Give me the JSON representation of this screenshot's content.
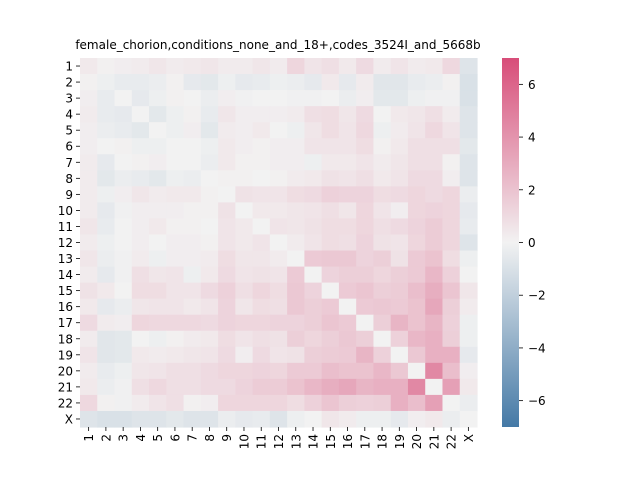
{
  "chart_data": {
    "type": "heatmap",
    "title": "female_chorion,conditions_none_and_18+,codes_3524I_and_5668b",
    "xlabel": "",
    "ylabel": "",
    "categories": [
      "1",
      "2",
      "3",
      "4",
      "5",
      "6",
      "7",
      "8",
      "9",
      "10",
      "11",
      "12",
      "13",
      "14",
      "15",
      "16",
      "17",
      "18",
      "19",
      "20",
      "21",
      "22",
      "X"
    ],
    "colorbar": {
      "min": -7,
      "max": 7,
      "ticks": [
        -6,
        -4,
        -2,
        0,
        2,
        4,
        6
      ],
      "low_color": "#4479a6",
      "mid_color": "#f2f2f2",
      "high_color": "#d84d79"
    },
    "values": [
      [
        0.4,
        0.1,
        0.2,
        0.3,
        0.5,
        0.3,
        0.4,
        0.5,
        0.3,
        0.3,
        0.5,
        0.3,
        1.2,
        0.6,
        0.8,
        0.4,
        1.0,
        0.3,
        0.6,
        0.3,
        0.4,
        1.1,
        -0.8
      ],
      [
        0.1,
        -0.2,
        -0.4,
        -0.4,
        -0.3,
        0.1,
        -0.5,
        -0.6,
        -0.2,
        -0.5,
        -0.4,
        -0.2,
        -0.3,
        -0.5,
        0.4,
        -0.5,
        0.3,
        -0.7,
        -0.7,
        -0.4,
        -0.3,
        0.1,
        -1.0
      ],
      [
        0.2,
        -0.4,
        0.0,
        -0.5,
        -0.2,
        0.1,
        0.0,
        -0.3,
        0.2,
        -0.1,
        0.0,
        0.0,
        -0.1,
        -0.1,
        0.0,
        -0.3,
        0.2,
        -0.6,
        -0.6,
        -0.2,
        -0.1,
        -0.1,
        -1.0
      ],
      [
        0.3,
        -0.4,
        -0.5,
        0.0,
        -0.6,
        -0.2,
        0.1,
        -0.4,
        0.5,
        0.2,
        0.2,
        0.2,
        0.3,
        0.8,
        0.9,
        0.5,
        1.0,
        0.0,
        0.4,
        0.5,
        0.8,
        0.3,
        -0.8
      ],
      [
        0.2,
        -0.3,
        -0.4,
        -0.6,
        0.0,
        -0.2,
        0.2,
        -0.6,
        0.3,
        0.2,
        0.4,
        0.0,
        -0.2,
        0.5,
        0.9,
        0.6,
        1.1,
        -0.2,
        0.3,
        0.6,
        1.1,
        0.6,
        -0.8
      ],
      [
        0.2,
        0.0,
        0.1,
        -0.2,
        -0.2,
        0.0,
        0.0,
        -0.2,
        0.4,
        0.2,
        0.1,
        0.2,
        0.2,
        0.6,
        0.6,
        0.6,
        0.9,
        0.1,
        0.4,
        0.8,
        0.8,
        0.8,
        -0.6
      ],
      [
        0.3,
        -0.5,
        0.0,
        0.1,
        0.2,
        0.0,
        0.0,
        -0.3,
        0.4,
        0.1,
        0.1,
        0.2,
        0.2,
        -0.2,
        0.4,
        0.4,
        0.6,
        0.3,
        0.5,
        0.8,
        0.8,
        0.1,
        -0.8
      ],
      [
        0.3,
        -0.6,
        -0.3,
        -0.4,
        -0.6,
        -0.2,
        -0.3,
        0.0,
        0.1,
        0.1,
        0.0,
        0.1,
        0.3,
        0.4,
        0.7,
        0.6,
        0.8,
        0.4,
        0.6,
        1.0,
        1.0,
        0.2,
        -0.8
      ],
      [
        0.3,
        -0.2,
        0.2,
        0.5,
        0.3,
        0.4,
        0.4,
        0.1,
        0.0,
        0.7,
        0.6,
        0.6,
        0.9,
        1.0,
        1.4,
        1.3,
        1.3,
        0.9,
        1.0,
        1.2,
        1.0,
        1.2,
        -0.3
      ],
      [
        0.3,
        -0.5,
        -0.1,
        0.2,
        0.2,
        0.2,
        0.1,
        0.1,
        0.7,
        0.0,
        0.4,
        0.4,
        0.5,
        0.6,
        0.8,
        0.5,
        1.2,
        0.6,
        0.2,
        1.2,
        1.3,
        1.2,
        -0.5
      ],
      [
        0.5,
        -0.4,
        0.0,
        0.2,
        0.4,
        0.1,
        0.1,
        0.0,
        0.6,
        0.4,
        0.0,
        0.6,
        0.5,
        0.7,
        0.9,
        0.9,
        1.2,
        0.8,
        1.0,
        1.3,
        1.6,
        1.2,
        -0.4
      ],
      [
        0.3,
        -0.2,
        0.0,
        0.2,
        0.0,
        0.2,
        0.2,
        0.1,
        0.6,
        0.4,
        0.6,
        0.0,
        0.3,
        0.6,
        0.9,
        0.8,
        1.3,
        0.7,
        0.6,
        1.2,
        1.6,
        1.2,
        -0.8
      ],
      [
        0.5,
        -0.3,
        -0.1,
        0.3,
        -0.2,
        0.2,
        0.2,
        0.3,
        0.9,
        0.5,
        0.5,
        0.3,
        0.0,
        1.7,
        1.8,
        1.8,
        1.3,
        1.5,
        0.7,
        1.7,
        2.0,
        0.9,
        -0.2
      ],
      [
        0.3,
        -0.5,
        -0.1,
        0.8,
        0.5,
        0.6,
        -0.2,
        0.4,
        1.0,
        0.6,
        0.7,
        0.6,
        1.7,
        0.0,
        1.3,
        1.5,
        1.5,
        1.2,
        1.5,
        1.7,
        2.5,
        1.4,
        0.0
      ],
      [
        0.7,
        0.4,
        0.0,
        0.9,
        0.9,
        0.6,
        0.6,
        1.0,
        1.4,
        0.8,
        1.2,
        0.9,
        1.8,
        1.3,
        0.0,
        1.7,
        1.9,
        1.5,
        1.6,
        2.2,
        2.9,
        1.9,
        0.5
      ],
      [
        0.4,
        -0.5,
        -0.3,
        0.5,
        0.6,
        0.6,
        0.4,
        0.6,
        1.3,
        0.5,
        0.9,
        0.8,
        1.8,
        1.5,
        1.7,
        0.0,
        1.7,
        1.8,
        1.7,
        2.0,
        3.2,
        1.5,
        0.3
      ],
      [
        1.0,
        0.3,
        0.2,
        1.2,
        1.1,
        1.1,
        1.1,
        1.0,
        1.3,
        1.2,
        1.2,
        1.3,
        1.3,
        1.5,
        1.9,
        1.7,
        0.0,
        1.5,
        2.6,
        2.0,
        2.6,
        1.4,
        -0.2
      ],
      [
        0.3,
        -0.7,
        -0.6,
        0.0,
        -0.2,
        0.1,
        0.3,
        0.4,
        0.9,
        0.6,
        0.8,
        0.7,
        1.5,
        1.2,
        1.5,
        1.8,
        1.5,
        0.0,
        1.4,
        2.5,
        2.8,
        1.5,
        -0.2
      ],
      [
        0.6,
        -0.7,
        -0.6,
        0.4,
        0.3,
        0.4,
        0.5,
        0.6,
        1.0,
        0.2,
        1.0,
        0.6,
        0.7,
        1.5,
        1.6,
        1.7,
        2.6,
        1.4,
        0.0,
        1.8,
        2.8,
        2.8,
        -0.5
      ],
      [
        0.3,
        -0.4,
        -0.2,
        0.5,
        0.6,
        0.8,
        0.8,
        1.0,
        1.2,
        1.2,
        1.3,
        1.2,
        1.7,
        1.7,
        2.2,
        2.0,
        2.0,
        2.5,
        1.8,
        0.0,
        4.5,
        2.2,
        0.2
      ],
      [
        0.4,
        -0.3,
        -0.1,
        0.8,
        1.1,
        0.8,
        0.8,
        1.0,
        1.0,
        1.3,
        1.6,
        1.6,
        2.0,
        2.5,
        2.9,
        3.2,
        2.6,
        2.8,
        2.8,
        4.5,
        0.0,
        3.5,
        0.4
      ],
      [
        1.1,
        0.1,
        -0.1,
        0.3,
        0.6,
        0.8,
        0.1,
        0.2,
        1.2,
        1.2,
        1.2,
        1.2,
        0.9,
        1.4,
        1.9,
        1.5,
        1.4,
        1.5,
        2.8,
        2.2,
        3.5,
        0.0,
        -0.3
      ],
      [
        -0.8,
        -1.0,
        -1.0,
        -0.8,
        -0.8,
        -0.6,
        -0.8,
        -0.8,
        -0.3,
        -0.5,
        -0.4,
        -0.8,
        -0.2,
        0.0,
        0.5,
        0.3,
        -0.2,
        -0.2,
        -0.5,
        0.2,
        0.4,
        -0.3,
        0.0
      ]
    ]
  }
}
